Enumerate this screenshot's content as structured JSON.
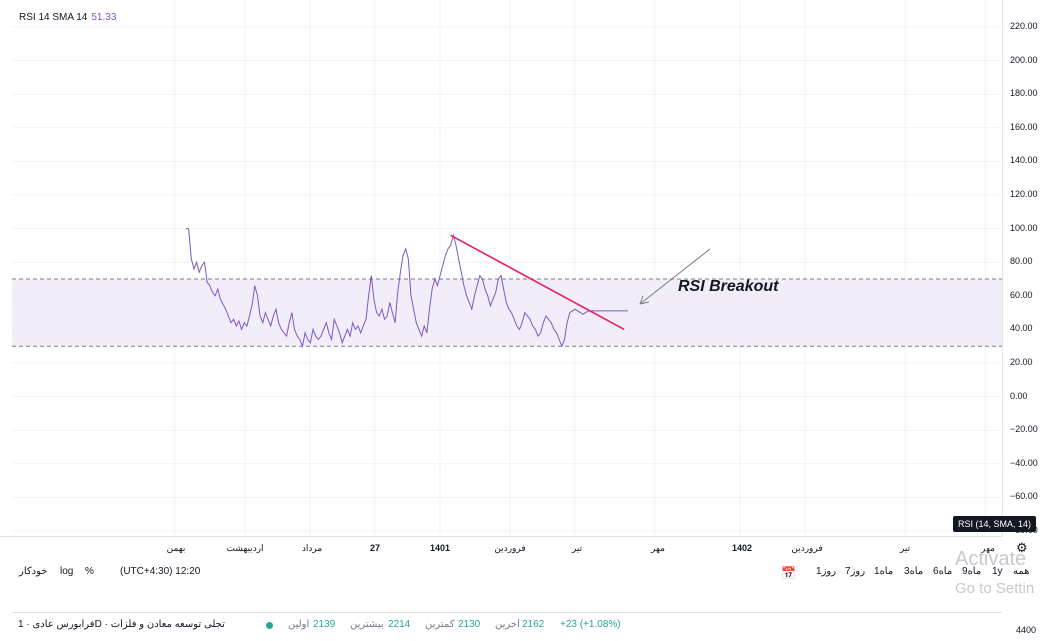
{
  "legend": {
    "name": "RSI 14 SMA 14",
    "value": "51.33"
  },
  "indicator_badge": "RSI (14, SMA, 14)",
  "annotation": "RSI Breakout",
  "colors": {
    "rsi_line": "#7e57c2",
    "band_fill": "#ede7f6",
    "trendline": "#e91e63",
    "arrow": "#787b86",
    "positive": "#26a69a"
  },
  "time_axis": [
    "بهمن",
    "اردیبهشت",
    "مرداد",
    "27",
    "1401",
    "فروردین",
    "تیر",
    "مهر",
    "1402",
    "فروردین",
    "تیر",
    "مهر"
  ],
  "toolbar": {
    "auto": "خودکار",
    "log": "log",
    "percent": "%",
    "timezone": "(UTC+4:30) 12:20",
    "ranges": [
      "همه",
      "1y",
      "9ماه",
      "6ماه",
      "3ماه",
      "1ماه",
      "7روز",
      "1روز"
    ]
  },
  "watermark": {
    "line1": "Activate",
    "line2": "Go to Settin"
  },
  "symbol_bar": {
    "name": "فرابورس عادی · 1D · تجلی توسعه معادن و فلزات",
    "open_label": "اولین",
    "open": "2139",
    "high_label": "بیشترین",
    "high": "2214",
    "low_label": "کمترین",
    "low": "2130",
    "last_label": "اخرین",
    "last": "2162",
    "change": "+23 (+1.08%)"
  },
  "right_price": "4400",
  "chart_data": {
    "type": "line",
    "series": [
      {
        "name": "RSI 14 SMA 14",
        "x": [
          0,
          1,
          2,
          3,
          4,
          5,
          6,
          7,
          8,
          9,
          10,
          11,
          12,
          13,
          14,
          15,
          16,
          17,
          18,
          19,
          20,
          21,
          22,
          23,
          24,
          25,
          26,
          27,
          28,
          29,
          30,
          31,
          32,
          33,
          34,
          35,
          36,
          37,
          38,
          39,
          40,
          41,
          42,
          43,
          44,
          45,
          46,
          47,
          48,
          49,
          50,
          51,
          52,
          53,
          54,
          55,
          56,
          57,
          58,
          59,
          60,
          61,
          62,
          63,
          64,
          65,
          66,
          67,
          68,
          69,
          70,
          71,
          72,
          73,
          74,
          75,
          76,
          77,
          78,
          79,
          80,
          81,
          82,
          83,
          84,
          85,
          86,
          87,
          88,
          89,
          90,
          91,
          92,
          93,
          94,
          95,
          96,
          97,
          98,
          99,
          100,
          101,
          102,
          103,
          104,
          105,
          106,
          107,
          108,
          109,
          110,
          111,
          112,
          113,
          114,
          115,
          116,
          117,
          118,
          119,
          120,
          121,
          122,
          123,
          124,
          125,
          126,
          127,
          128,
          129,
          130,
          131,
          132,
          133,
          134,
          135,
          136,
          137,
          138,
          139,
          140,
          141,
          142,
          143,
          144,
          145,
          146,
          147,
          148,
          149,
          150,
          151,
          152,
          153,
          154,
          155,
          156,
          157,
          158,
          159,
          160,
          161,
          162,
          163,
          164,
          165,
          166,
          167
        ],
        "values": [
          100,
          100,
          82,
          76,
          80,
          74,
          78,
          80,
          68,
          66,
          62,
          60,
          64,
          58,
          55,
          52,
          48,
          44,
          46,
          42,
          45,
          40,
          44,
          42,
          48,
          55,
          66,
          60,
          48,
          44,
          50,
          46,
          42,
          48,
          52,
          44,
          40,
          38,
          36,
          44,
          50,
          40,
          36,
          34,
          30,
          38,
          34,
          32,
          40,
          36,
          34,
          36,
          40,
          44,
          38,
          34,
          46,
          42,
          38,
          32,
          36,
          40,
          36,
          44,
          40,
          42,
          38,
          42,
          46,
          60,
          72,
          58,
          50,
          48,
          52,
          46,
          48,
          56,
          50,
          44,
          62,
          74,
          84,
          88,
          82,
          60,
          52,
          44,
          40,
          36,
          42,
          38,
          52,
          64,
          70,
          66,
          72,
          78,
          84,
          88,
          90,
          96,
          90,
          82,
          74,
          66,
          60,
          56,
          52,
          60,
          66,
          72,
          70,
          64,
          60,
          54,
          58,
          62,
          70,
          72,
          64,
          56,
          52,
          50,
          46,
          42,
          40,
          44,
          50,
          48,
          46,
          42,
          40,
          36,
          38,
          44,
          48,
          46,
          44,
          40,
          38,
          34,
          30,
          34,
          44,
          50,
          51,
          52,
          51,
          50,
          49,
          50,
          51,
          51,
          51,
          51,
          51,
          51,
          51,
          51,
          51,
          51,
          51,
          51,
          51,
          51,
          51,
          51
        ],
        "note_x": "days"
      }
    ],
    "ylim": [
      -70,
      225
    ],
    "y_ticks": [
      "220.00",
      "200.00",
      "180.00",
      "160.00",
      "140.00",
      "120.00",
      "100.00",
      "80.00",
      "60.00",
      "40.00",
      "20.00",
      "0.00",
      "−20.00",
      "−40.00",
      "−60.00",
      "−80.00"
    ],
    "bands": {
      "upper": 70,
      "lower": 30
    },
    "trendline": {
      "from": [
        100,
        96
      ],
      "to": [
        158,
        40
      ]
    },
    "grid": true
  }
}
